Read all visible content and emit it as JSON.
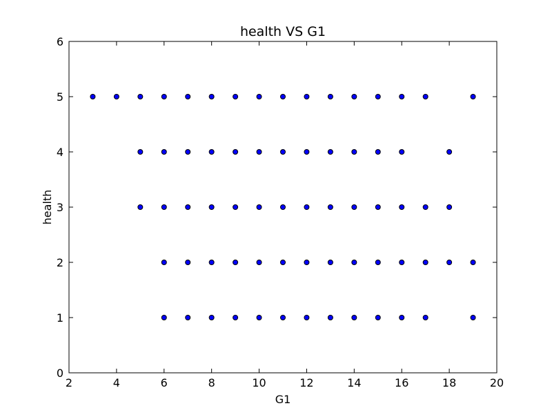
{
  "chart_data": {
    "type": "scatter",
    "title": "health VS G1",
    "xlabel": "G1",
    "ylabel": "health",
    "xlim": [
      2,
      20
    ],
    "ylim": [
      0,
      6
    ],
    "xticks": [
      2,
      4,
      6,
      8,
      10,
      12,
      14,
      16,
      18,
      20
    ],
    "yticks": [
      0,
      1,
      2,
      3,
      4,
      5,
      6
    ],
    "grid": false,
    "marker_color": "#0000ff",
    "marker_edge_color": "#000000",
    "points": [
      {
        "x": 3,
        "y": 5
      },
      {
        "x": 4,
        "y": 5
      },
      {
        "x": 5,
        "y": 5
      },
      {
        "x": 6,
        "y": 5
      },
      {
        "x": 7,
        "y": 5
      },
      {
        "x": 8,
        "y": 5
      },
      {
        "x": 9,
        "y": 5
      },
      {
        "x": 10,
        "y": 5
      },
      {
        "x": 11,
        "y": 5
      },
      {
        "x": 12,
        "y": 5
      },
      {
        "x": 13,
        "y": 5
      },
      {
        "x": 14,
        "y": 5
      },
      {
        "x": 15,
        "y": 5
      },
      {
        "x": 16,
        "y": 5
      },
      {
        "x": 17,
        "y": 5
      },
      {
        "x": 19,
        "y": 5
      },
      {
        "x": 5,
        "y": 4
      },
      {
        "x": 6,
        "y": 4
      },
      {
        "x": 7,
        "y": 4
      },
      {
        "x": 8,
        "y": 4
      },
      {
        "x": 9,
        "y": 4
      },
      {
        "x": 10,
        "y": 4
      },
      {
        "x": 11,
        "y": 4
      },
      {
        "x": 12,
        "y": 4
      },
      {
        "x": 13,
        "y": 4
      },
      {
        "x": 14,
        "y": 4
      },
      {
        "x": 15,
        "y": 4
      },
      {
        "x": 16,
        "y": 4
      },
      {
        "x": 18,
        "y": 4
      },
      {
        "x": 5,
        "y": 3
      },
      {
        "x": 6,
        "y": 3
      },
      {
        "x": 7,
        "y": 3
      },
      {
        "x": 8,
        "y": 3
      },
      {
        "x": 9,
        "y": 3
      },
      {
        "x": 10,
        "y": 3
      },
      {
        "x": 11,
        "y": 3
      },
      {
        "x": 12,
        "y": 3
      },
      {
        "x": 13,
        "y": 3
      },
      {
        "x": 14,
        "y": 3
      },
      {
        "x": 15,
        "y": 3
      },
      {
        "x": 16,
        "y": 3
      },
      {
        "x": 17,
        "y": 3
      },
      {
        "x": 18,
        "y": 3
      },
      {
        "x": 6,
        "y": 2
      },
      {
        "x": 7,
        "y": 2
      },
      {
        "x": 8,
        "y": 2
      },
      {
        "x": 9,
        "y": 2
      },
      {
        "x": 10,
        "y": 2
      },
      {
        "x": 11,
        "y": 2
      },
      {
        "x": 12,
        "y": 2
      },
      {
        "x": 13,
        "y": 2
      },
      {
        "x": 14,
        "y": 2
      },
      {
        "x": 15,
        "y": 2
      },
      {
        "x": 16,
        "y": 2
      },
      {
        "x": 17,
        "y": 2
      },
      {
        "x": 18,
        "y": 2
      },
      {
        "x": 19,
        "y": 2
      },
      {
        "x": 6,
        "y": 1
      },
      {
        "x": 7,
        "y": 1
      },
      {
        "x": 8,
        "y": 1
      },
      {
        "x": 9,
        "y": 1
      },
      {
        "x": 10,
        "y": 1
      },
      {
        "x": 11,
        "y": 1
      },
      {
        "x": 12,
        "y": 1
      },
      {
        "x": 13,
        "y": 1
      },
      {
        "x": 14,
        "y": 1
      },
      {
        "x": 15,
        "y": 1
      },
      {
        "x": 16,
        "y": 1
      },
      {
        "x": 17,
        "y": 1
      },
      {
        "x": 19,
        "y": 1
      }
    ]
  }
}
